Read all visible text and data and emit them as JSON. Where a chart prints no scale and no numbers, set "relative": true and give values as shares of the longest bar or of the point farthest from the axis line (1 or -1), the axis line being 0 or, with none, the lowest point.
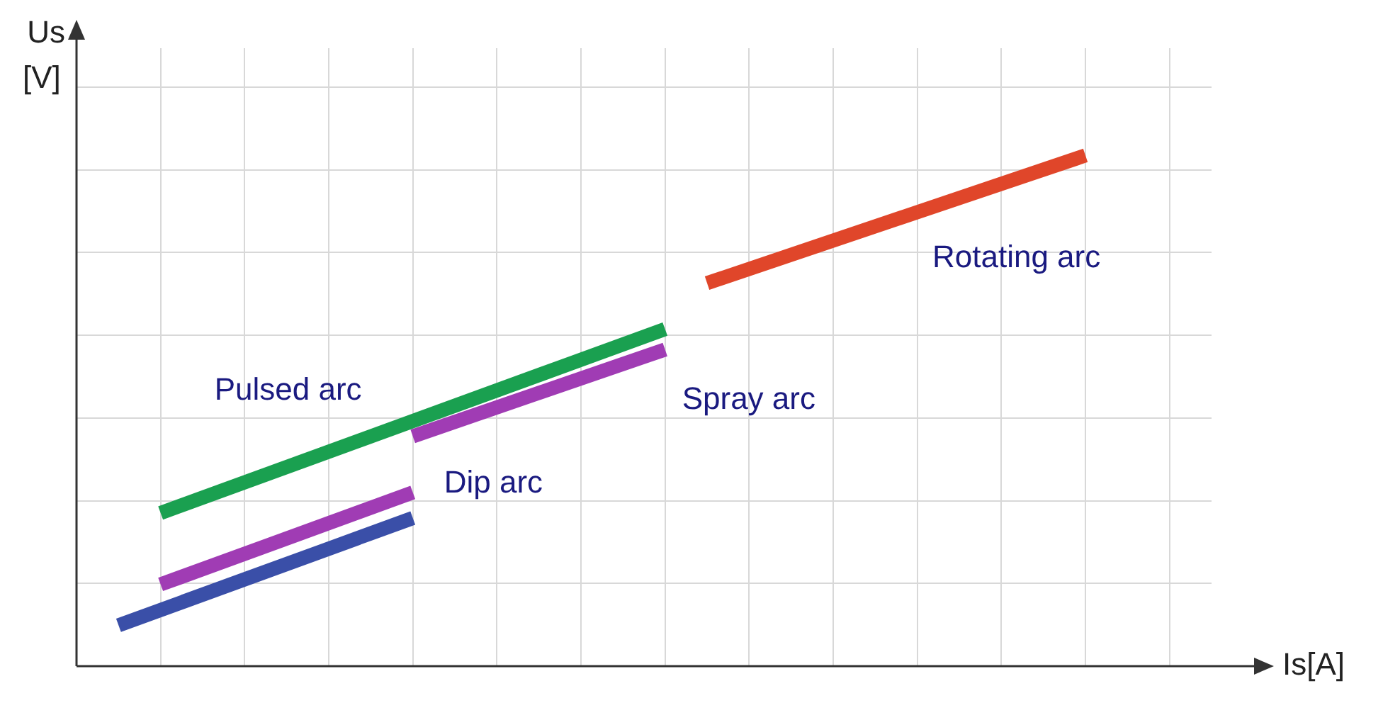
{
  "chart_data": {
    "type": "line",
    "relative": true,
    "xlabel": "Is[A]",
    "ylabel": "Us [V]",
    "grid": true,
    "legend": false,
    "marker": "none",
    "line_style": "solid",
    "categories": [
      null,
      null,
      null,
      null,
      null,
      null,
      null,
      null,
      null,
      null,
      null,
      null,
      null,
      null,
      null,
      null,
      null,
      null,
      null,
      null,
      null,
      null,
      null,
      null,
      null,
      null,
      null,
      null
    ],
    "series": [
      {
        "color": "#3a4fa8",
        "values": [
          null,
          0.08,
          null,
          null,
          null,
          null,
          null,
          null,
          0.29,
          null,
          null,
          null,
          null,
          null,
          null,
          null,
          null,
          null,
          null,
          null,
          null,
          null,
          null,
          null,
          null,
          null,
          null,
          null
        ]
      },
      {
        "name": "Dip arc",
        "color": "#a03cb4",
        "values": [
          null,
          null,
          0.16,
          null,
          null,
          null,
          null,
          null,
          0.34,
          null,
          null,
          null,
          null,
          null,
          null,
          null,
          null,
          null,
          null,
          null,
          null,
          null,
          null,
          null,
          null,
          null,
          null,
          null
        ]
      },
      {
        "name": "Pulsed arc",
        "color": "#1aa050",
        "values": [
          null,
          null,
          0.3,
          null,
          null,
          null,
          null,
          null,
          null,
          null,
          null,
          null,
          null,
          null,
          0.66,
          null,
          null,
          null,
          null,
          null,
          null,
          null,
          null,
          null,
          null,
          null,
          null,
          null
        ]
      },
      {
        "name": "Spray arc",
        "color": "#a03cb4",
        "values": [
          null,
          null,
          null,
          null,
          null,
          null,
          null,
          null,
          0.45,
          null,
          null,
          null,
          null,
          null,
          0.62,
          null,
          null,
          null,
          null,
          null,
          null,
          null,
          null,
          null,
          null,
          null,
          null,
          null
        ]
      },
      {
        "name": "Rotating arc",
        "color": "#e0462a",
        "values": [
          null,
          null,
          null,
          null,
          null,
          null,
          null,
          null,
          null,
          null,
          null,
          null,
          null,
          null,
          null,
          0.75,
          null,
          null,
          null,
          null,
          null,
          null,
          null,
          null,
          1,
          null,
          null,
          null
        ]
      }
    ]
  }
}
